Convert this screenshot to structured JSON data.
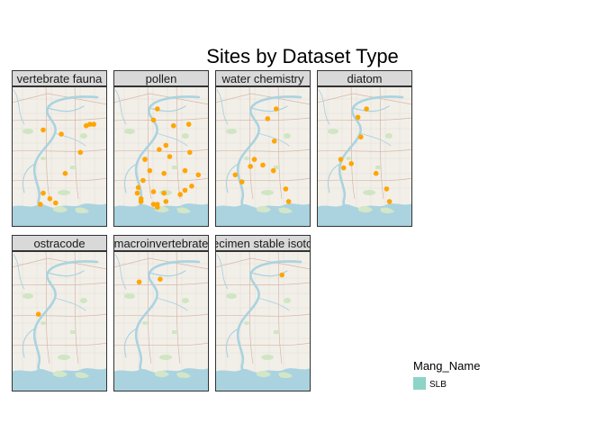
{
  "chart_data": {
    "type": "scatter",
    "title": "Sites by Dataset Type",
    "facets": [
      {
        "label": "vertebrate fauna",
        "x": [
          0.33,
          0.52,
          0.78,
          0.86,
          0.82,
          0.72,
          0.56,
          0.33,
          0.4,
          0.46,
          0.3
        ],
        "y": [
          0.69,
          0.66,
          0.72,
          0.73,
          0.73,
          0.53,
          0.38,
          0.24,
          0.2,
          0.17,
          0.16
        ]
      },
      {
        "label": "pollen",
        "x": [
          0.46,
          0.42,
          0.63,
          0.79,
          0.48,
          0.55,
          0.8,
          0.33,
          0.38,
          0.59,
          0.75,
          0.89,
          0.31,
          0.26,
          0.29,
          0.46,
          0.55,
          0.7,
          0.82,
          0.46,
          0.42,
          0.53,
          0.75,
          0.42,
          0.29,
          0.25,
          0.53
        ],
        "y": [
          0.84,
          0.76,
          0.72,
          0.73,
          0.55,
          0.58,
          0.53,
          0.48,
          0.4,
          0.5,
          0.4,
          0.37,
          0.33,
          0.28,
          0.18,
          0.16,
          0.18,
          0.23,
          0.29,
          0.14,
          0.25,
          0.24,
          0.26,
          0.16,
          0.2,
          0.24,
          0.38
        ]
      },
      {
        "label": "water chemistry",
        "x": [
          0.64,
          0.55,
          0.62,
          0.41,
          0.37,
          0.5,
          0.21,
          0.28,
          0.61,
          0.74,
          0.77
        ],
        "y": [
          0.84,
          0.77,
          0.61,
          0.48,
          0.43,
          0.44,
          0.37,
          0.32,
          0.4,
          0.27,
          0.18
        ]
      },
      {
        "label": "diatom",
        "x": [
          0.52,
          0.43,
          0.46,
          0.25,
          0.28,
          0.36,
          0.62,
          0.73,
          0.76
        ],
        "y": [
          0.84,
          0.78,
          0.64,
          0.48,
          0.42,
          0.45,
          0.38,
          0.27,
          0.18
        ]
      },
      {
        "label": "ostracode",
        "x": [
          0.28
        ],
        "y": [
          0.55
        ]
      },
      {
        "label": "macroinvertebrate",
        "x": [
          0.27,
          0.49
        ],
        "y": [
          0.78,
          0.8
        ]
      },
      {
        "label": "specimen stable isotope",
        "x": [
          0.7
        ],
        "y": [
          0.83
        ]
      }
    ],
    "xlim": [
      0,
      1
    ],
    "ylim": [
      0,
      1
    ],
    "point_color": "#FFA500",
    "facet_layout": "4 columns x 2 rows",
    "legend": {
      "title": "Mang_Name",
      "entries": [
        {
          "label": "SLB",
          "color": "#8DD3C7"
        }
      ],
      "position": "bottom-right"
    }
  }
}
